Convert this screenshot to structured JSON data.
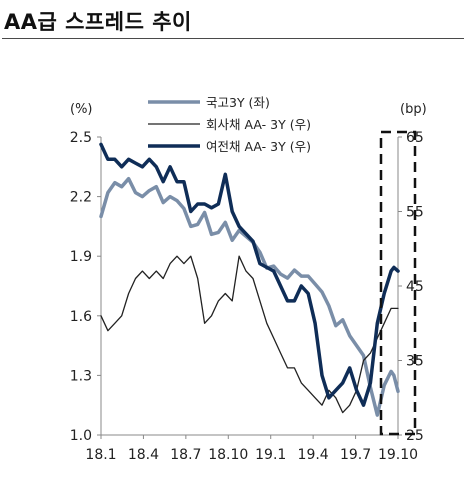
{
  "title": "AA급 스프레드 추이",
  "chart_data": {
    "type": "line",
    "title": "AA급 스프레드 추이",
    "left_unit": "(%)",
    "right_unit": "(bp)",
    "x_ticks": [
      "18.1",
      "18.4",
      "18.7",
      "18.10",
      "19.1",
      "19.4",
      "19.7",
      "19.10"
    ],
    "y_left": {
      "min": 1.0,
      "max": 2.5,
      "ticks": [
        "1.0",
        "1.3",
        "1.6",
        "1.9",
        "2.2",
        "2.5"
      ]
    },
    "y_right": {
      "min": 25,
      "max": 65,
      "ticks": [
        "25",
        "35",
        "45",
        "55",
        "65"
      ]
    },
    "grid": false,
    "legend_position": "top",
    "highlight_box": "19.9–19.10 (right dashed box)",
    "series": [
      {
        "name": "국고3Y (좌)",
        "axis": "left",
        "color": "#7a8ea8",
        "x": [
          0,
          0.5,
          1,
          1.5,
          2,
          2.5,
          3,
          3.5,
          4,
          4.5,
          5,
          5.5,
          6,
          6.5,
          7,
          7.5,
          8,
          8.5,
          9,
          9.5,
          10,
          10.5,
          11,
          11.5,
          12,
          12.5,
          13,
          13.5,
          14,
          14.5,
          15,
          15.5,
          16,
          16.5,
          17,
          17.5,
          18,
          18.5,
          19,
          19.5,
          20,
          20.5,
          21,
          21.2,
          21.5
        ],
        "y": [
          2.1,
          2.22,
          2.27,
          2.25,
          2.29,
          2.22,
          2.2,
          2.23,
          2.25,
          2.17,
          2.2,
          2.18,
          2.14,
          2.05,
          2.06,
          2.12,
          2.01,
          2.02,
          2.07,
          1.98,
          2.03,
          2.0,
          1.97,
          1.92,
          1.84,
          1.85,
          1.81,
          1.79,
          1.83,
          1.8,
          1.8,
          1.76,
          1.72,
          1.65,
          1.55,
          1.58,
          1.5,
          1.45,
          1.4,
          1.24,
          1.1,
          1.25,
          1.32,
          1.3,
          1.22
        ]
      },
      {
        "name": "회사채 AA- 3Y (우)",
        "axis": "right",
        "color": "#222222",
        "x": [
          0,
          0.5,
          1,
          1.5,
          2,
          2.5,
          3,
          3.5,
          4,
          4.5,
          5,
          5.5,
          6,
          6.5,
          7,
          7.5,
          8,
          8.5,
          9,
          9.5,
          10,
          10.5,
          11,
          11.5,
          12,
          12.5,
          13,
          13.5,
          14,
          14.5,
          15,
          15.5,
          16,
          16.5,
          17,
          17.5,
          18,
          18.5,
          19,
          19.5,
          20,
          20.5,
          21,
          21.2,
          21.5
        ],
        "y": [
          41,
          39,
          40,
          41,
          44,
          46,
          47,
          46,
          47,
          46,
          48,
          49,
          48,
          49,
          46,
          40,
          41,
          43,
          44,
          43,
          49,
          47,
          46,
          43,
          40,
          38,
          36,
          34,
          34,
          32,
          31,
          30,
          29,
          31,
          30,
          28,
          29,
          31,
          35,
          36,
          38,
          40,
          42,
          42,
          42
        ]
      },
      {
        "name": "여전채 AA- 3Y (우)",
        "axis": "right",
        "color": "#0f2d57",
        "x": [
          0,
          0.5,
          1,
          1.5,
          2,
          2.5,
          3,
          3.5,
          4,
          4.5,
          5,
          5.5,
          6,
          6.5,
          7,
          7.5,
          8,
          8.5,
          9,
          9.5,
          10,
          10.5,
          11,
          11.5,
          12,
          12.5,
          13,
          13.5,
          14,
          14.5,
          15,
          15.5,
          16,
          16.5,
          17,
          17.5,
          18,
          18.5,
          19,
          19.5,
          20,
          20.5,
          21,
          21.2,
          21.5
        ],
        "y": [
          64,
          62,
          62,
          61,
          62,
          61.5,
          61,
          62,
          61,
          59,
          61,
          59,
          59,
          55,
          56,
          56,
          55.5,
          56,
          60,
          55,
          53,
          52,
          51,
          48,
          47.5,
          47,
          45,
          43,
          43,
          45,
          44,
          40,
          33,
          30,
          31,
          32,
          34,
          31,
          29,
          32,
          40,
          44,
          47,
          47.5,
          47
        ]
      }
    ]
  }
}
